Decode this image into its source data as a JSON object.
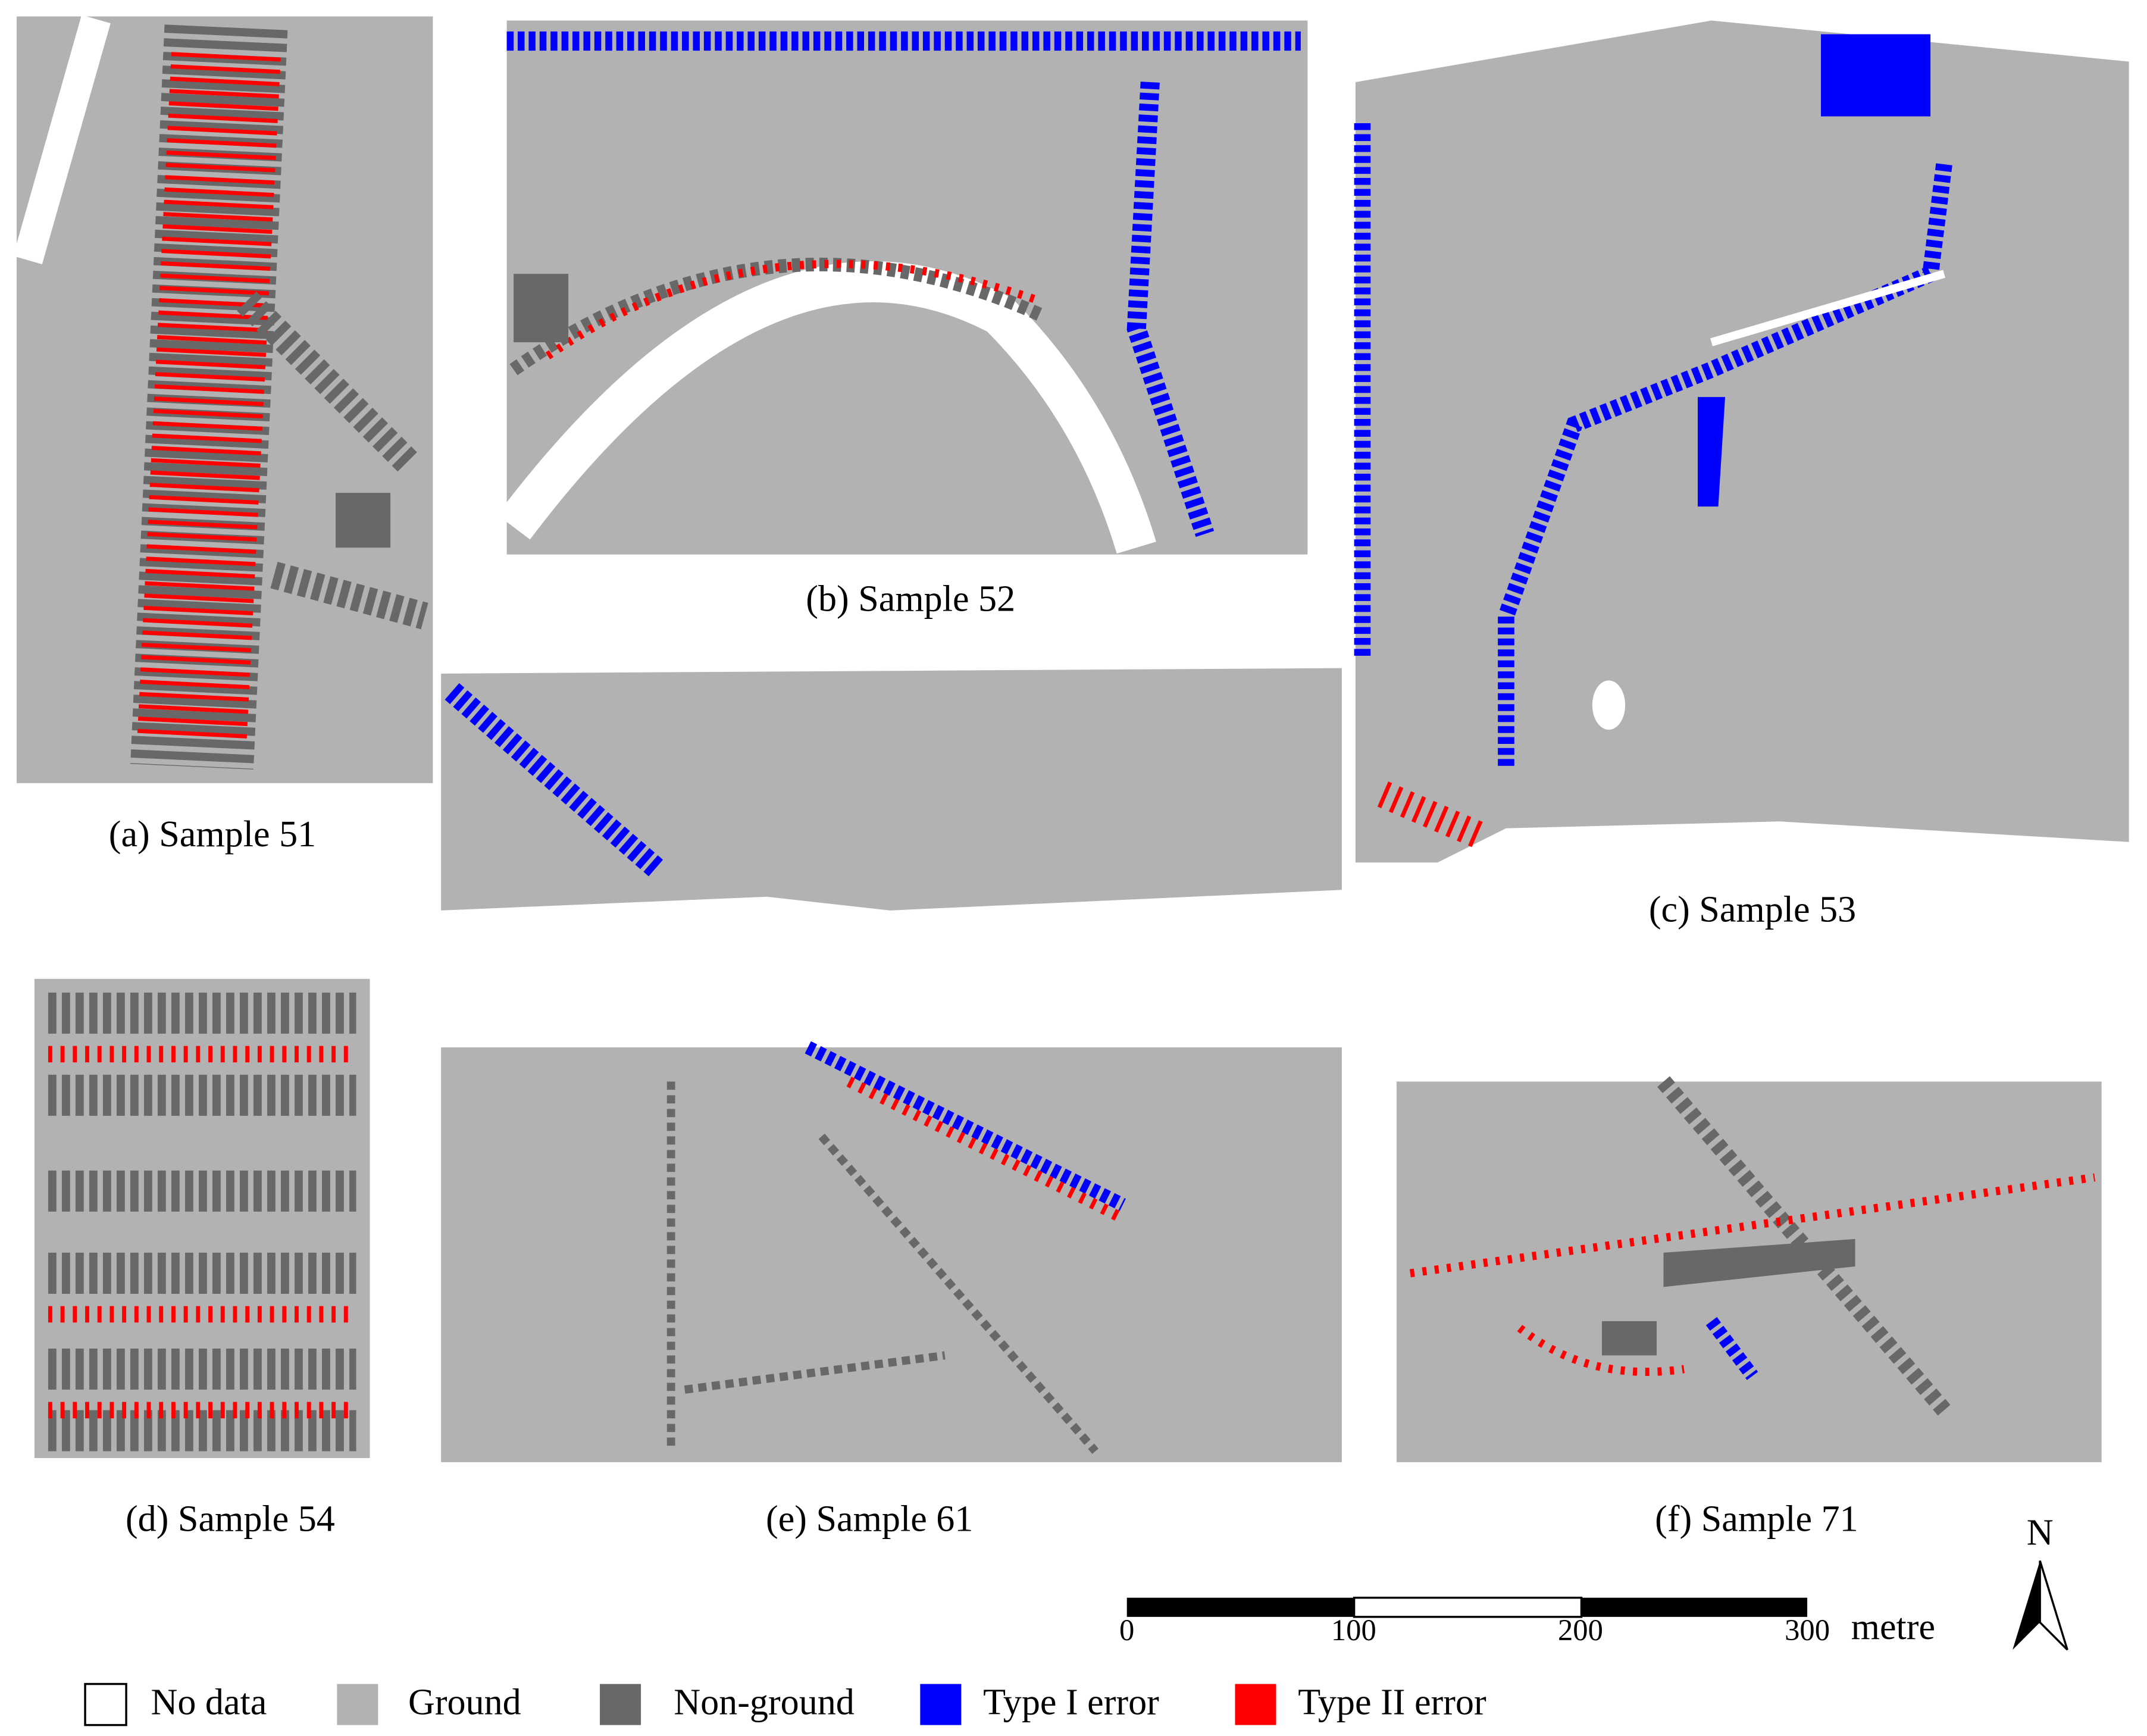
{
  "panels": [
    {
      "label": "(a) Sample 51"
    },
    {
      "label": "(b) Sample 52"
    },
    {
      "label": "(c) Sample 53"
    },
    {
      "label": "(d) Sample 54"
    },
    {
      "label": "(e) Sample 61"
    },
    {
      "label": "(f) Sample 71"
    }
  ],
  "scale_bar": {
    "ticks": [
      0,
      100,
      200,
      300
    ],
    "unit": "metre"
  },
  "north_arrow": {
    "label": "N"
  },
  "legend": [
    {
      "label": "No data",
      "color": "#ffffff"
    },
    {
      "label": "Ground",
      "color": "#b2b2b2"
    },
    {
      "label": "Non-ground",
      "color": "#686868"
    },
    {
      "label": "Type I error",
      "color": "#0000ff"
    },
    {
      "label": "Type II error",
      "color": "#ff0000"
    }
  ]
}
